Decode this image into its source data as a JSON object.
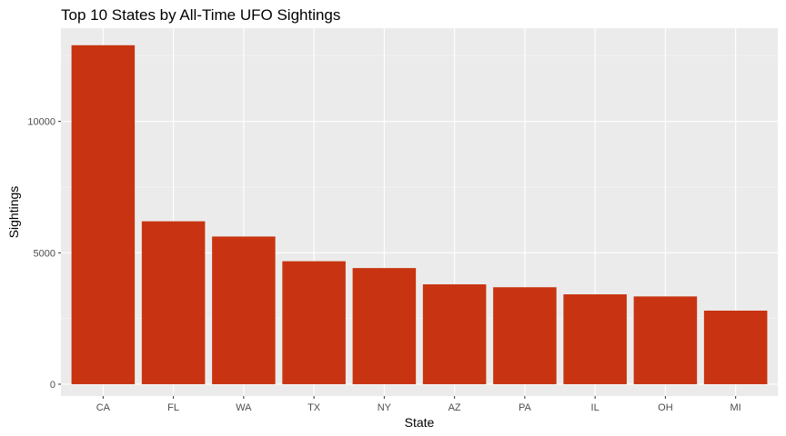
{
  "chart_data": {
    "type": "bar",
    "title": "Top 10 States by All-Time UFO Sightings",
    "xlabel": "State",
    "ylabel": "Sightings",
    "categories": [
      "CA",
      "FL",
      "WA",
      "TX",
      "NY",
      "AZ",
      "PA",
      "IL",
      "OH",
      "MI"
    ],
    "values": [
      12900,
      6200,
      5620,
      4680,
      4420,
      3800,
      3690,
      3420,
      3340,
      2800
    ],
    "ylim": [
      -450,
      13550
    ],
    "y_ticks": [
      0,
      5000,
      10000
    ],
    "y_tick_labels": [
      "0",
      "5000",
      "10000"
    ],
    "y_minor_ticks": [
      2500,
      7500,
      12500
    ],
    "grid": true,
    "colors": {
      "bar": "#c83411",
      "panel": "#ebebeb",
      "grid_major": "#ffffff",
      "grid_minor": "#f7f7f7",
      "tick_text": "#4d4d4d"
    }
  }
}
